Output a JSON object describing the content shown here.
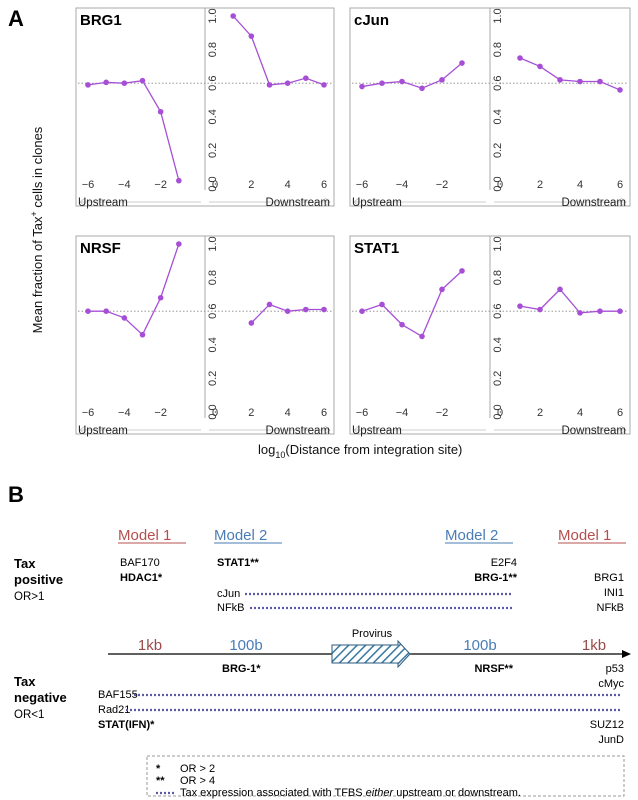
{
  "panel_a": {
    "letter": "A",
    "y_axis_title_main": "Mean fraction of Tax",
    "y_axis_title_sup": "+",
    "y_axis_title_end": " cells in clones",
    "x_axis_title_main": "log",
    "x_axis_title_sub": "10",
    "x_axis_title_end": "(Distance from integration site)",
    "upstream_label": "Upstream",
    "downstream_label": "Downstream",
    "upstream_ticks": [
      "−6",
      "−4",
      "−2"
    ],
    "downstream_ticks": [
      "0",
      "2",
      "4",
      "6"
    ],
    "y_ticks": [
      "0.0",
      "0.2",
      "0.4",
      "0.6",
      "0.8",
      "1.0"
    ],
    "line_color": "#a64fd6",
    "reference_line_color": "#888888"
  },
  "chart_data": [
    {
      "type": "line",
      "name": "BRG1",
      "ylim": [
        0,
        1
      ],
      "reference_y": 0.6,
      "upstream": {
        "x": [
          -6,
          -5,
          -4,
          -3,
          -2,
          -1
        ],
        "y": [
          0.59,
          0.605,
          0.6,
          0.615,
          0.43,
          0.02
        ]
      },
      "downstream": {
        "x": [
          1,
          2,
          3,
          4,
          5,
          6
        ],
        "y": [
          1.0,
          0.88,
          0.59,
          0.6,
          0.63,
          0.59
        ]
      }
    },
    {
      "type": "line",
      "name": "cJun",
      "ylim": [
        0,
        1
      ],
      "reference_y": 0.6,
      "upstream": {
        "x": [
          -6,
          -5,
          -4,
          -3,
          -2,
          -1
        ],
        "y": [
          0.58,
          0.6,
          0.61,
          0.57,
          0.62,
          0.72
        ]
      },
      "downstream": {
        "x": [
          1,
          2,
          3,
          4,
          5,
          6
        ],
        "y": [
          0.75,
          0.7,
          0.62,
          0.61,
          0.61,
          0.56
        ]
      }
    },
    {
      "type": "line",
      "name": "NRSF",
      "ylim": [
        0,
        1
      ],
      "reference_y": 0.6,
      "upstream": {
        "x": [
          -6,
          -5,
          -4,
          -3,
          -2,
          -1
        ],
        "y": [
          0.6,
          0.6,
          0.56,
          0.46,
          0.68,
          1.0
        ]
      },
      "downstream": {
        "x": [
          2,
          3,
          4,
          5,
          6
        ],
        "y": [
          0.53,
          0.64,
          0.6,
          0.61,
          0.61
        ]
      }
    },
    {
      "type": "line",
      "name": "STAT1",
      "ylim": [
        0,
        1
      ],
      "reference_y": 0.6,
      "upstream": {
        "x": [
          -6,
          -5,
          -4,
          -3,
          -2,
          -1
        ],
        "y": [
          0.6,
          0.64,
          0.52,
          0.45,
          0.73,
          0.84
        ]
      },
      "downstream": {
        "x": [
          1,
          2,
          3,
          4,
          5,
          6
        ],
        "y": [
          0.63,
          0.61,
          0.73,
          0.59,
          0.6,
          0.6
        ]
      }
    }
  ],
  "panel_b": {
    "letter": "B",
    "model1": "Model  1",
    "model2": "Model  2",
    "tax_positive_title_1": "Tax",
    "tax_positive_title_2": "positive",
    "tax_positive_or": "OR>1",
    "tax_negative_title_1": "Tax",
    "tax_negative_title_2": "negative",
    "tax_negative_or": "OR<1",
    "dist_1kb": "1kb",
    "dist_100b": "100b",
    "provirus": "Provirus",
    "pos_left_m1": [
      "BAF170",
      "HDAC1*"
    ],
    "pos_left_m2": "STAT1**",
    "pos_right_m2": [
      "E2F4",
      "BRG-1**"
    ],
    "pos_right_m1": [
      "BRG1",
      "INI1",
      "NFkB"
    ],
    "pos_spanning": [
      "cJun",
      "NFkB"
    ],
    "neg_left_m2": "BRG-1*",
    "neg_right_m2": "NRSF**",
    "neg_right_m1_top": [
      "p53",
      "cMyc"
    ],
    "neg_spanning": [
      "BAF155",
      "Rad21"
    ],
    "neg_left_m1": "STAT(IFN)*",
    "neg_right_m1_bottom": [
      "SUZ12",
      "JunD"
    ],
    "dotted_color": "#5a5aa8",
    "legend": {
      "star1": "*",
      "star1_text": "OR > 2",
      "star2": "**",
      "star2_text": "OR > 4",
      "dots_text_1": "Tax expression associated with TFBS ",
      "dots_text_em": "either",
      "dots_text_2": " upstream or downstream."
    }
  }
}
